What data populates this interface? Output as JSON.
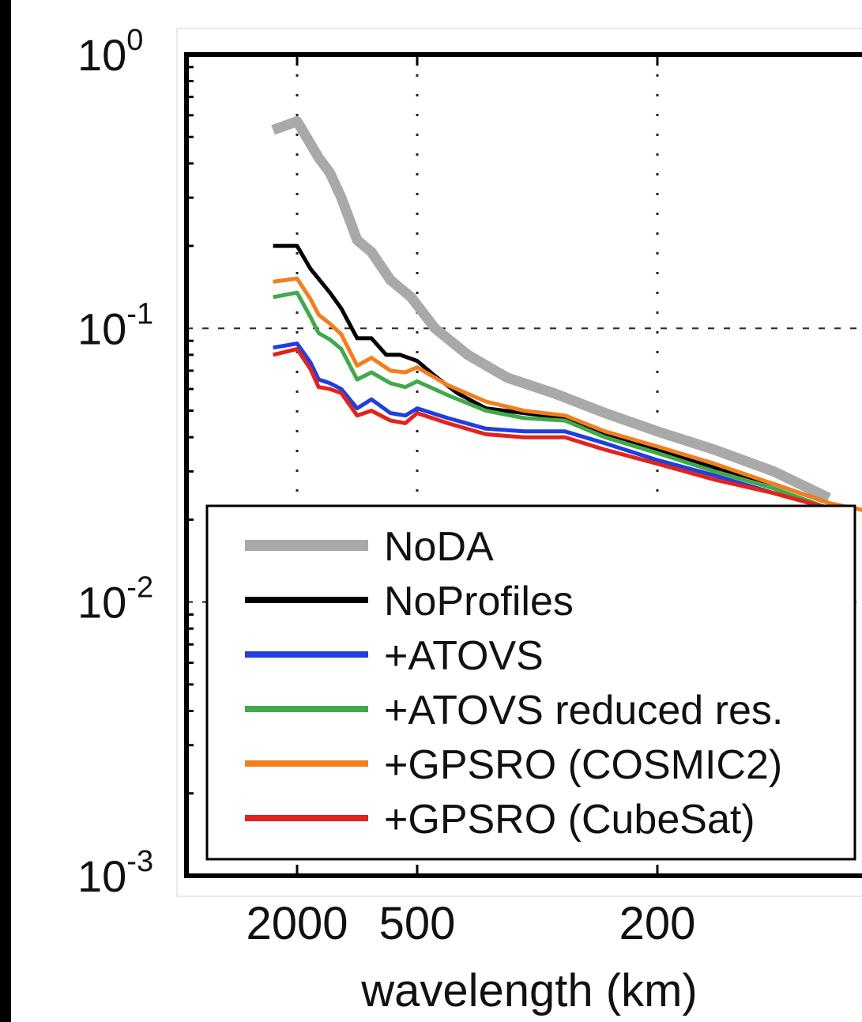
{
  "chart_data": {
    "type": "line",
    "title": "",
    "xlabel": "wavelength (km)",
    "ylabel": "",
    "x_scale": "reciprocal",
    "y_scale": "log",
    "xlim": [
      5000,
      70
    ],
    "ylim": [
      0.001,
      1
    ],
    "x_ticks": [
      {
        "value": 2000,
        "label": "2000"
      },
      {
        "value": 500,
        "label": "500"
      },
      {
        "value": 200,
        "label": "200"
      }
    ],
    "y_ticks": [
      {
        "value": 1,
        "base": "10",
        "exp": "0"
      },
      {
        "value": 0.1,
        "base": "10",
        "exp": "-1"
      },
      {
        "value": 0.01,
        "base": "10",
        "exp": "-2"
      },
      {
        "value": 0.001,
        "base": "10",
        "exp": "-3"
      }
    ],
    "grid": true,
    "legend_position": "bottom-left",
    "series": [
      {
        "name": "NoDA",
        "color": "#a9a9a9",
        "width": 13,
        "points": [
          [
            5000,
            0.53
          ],
          [
            2000,
            0.57
          ],
          [
            1300,
            0.42
          ],
          [
            1100,
            0.37
          ],
          [
            950,
            0.3
          ],
          [
            800,
            0.21
          ],
          [
            700,
            0.19
          ],
          [
            600,
            0.15
          ],
          [
            520,
            0.13
          ],
          [
            450,
            0.1
          ],
          [
            380,
            0.08
          ],
          [
            320,
            0.066
          ],
          [
            270,
            0.058
          ],
          [
            230,
            0.049
          ],
          [
            200,
            0.042
          ],
          [
            175,
            0.036
          ],
          [
            155,
            0.03
          ],
          [
            140,
            0.024
          ]
        ]
      },
      {
        "name": "NoProfiles",
        "color": "#000000",
        "width": 5,
        "points": [
          [
            5000,
            0.2
          ],
          [
            2000,
            0.2
          ],
          [
            1500,
            0.165
          ],
          [
            1100,
            0.135
          ],
          [
            950,
            0.118
          ],
          [
            800,
            0.092
          ],
          [
            700,
            0.092
          ],
          [
            620,
            0.08
          ],
          [
            560,
            0.08
          ],
          [
            500,
            0.076
          ],
          [
            450,
            0.067
          ],
          [
            400,
            0.058
          ],
          [
            350,
            0.051
          ],
          [
            300,
            0.049
          ],
          [
            260,
            0.047
          ],
          [
            230,
            0.041
          ],
          [
            200,
            0.036
          ],
          [
            175,
            0.031
          ],
          [
            155,
            0.027
          ],
          [
            140,
            0.023
          ]
        ]
      },
      {
        "name": "+ATOVS",
        "color": "#1f3fe0",
        "width": 5,
        "points": [
          [
            5000,
            0.085
          ],
          [
            2000,
            0.088
          ],
          [
            1500,
            0.075
          ],
          [
            1300,
            0.065
          ],
          [
            1100,
            0.063
          ],
          [
            950,
            0.06
          ],
          [
            800,
            0.051
          ],
          [
            700,
            0.055
          ],
          [
            600,
            0.049
          ],
          [
            540,
            0.048
          ],
          [
            500,
            0.051
          ],
          [
            420,
            0.047
          ],
          [
            350,
            0.043
          ],
          [
            300,
            0.042
          ],
          [
            260,
            0.042
          ],
          [
            230,
            0.038
          ],
          [
            200,
            0.033
          ],
          [
            175,
            0.029
          ],
          [
            155,
            0.025
          ],
          [
            140,
            0.022
          ]
        ]
      },
      {
        "name": "+ATOVS reduced res.",
        "color": "#41a94a",
        "width": 5,
        "points": [
          [
            5000,
            0.13
          ],
          [
            2000,
            0.135
          ],
          [
            1500,
            0.11
          ],
          [
            1300,
            0.096
          ],
          [
            1100,
            0.091
          ],
          [
            950,
            0.084
          ],
          [
            800,
            0.065
          ],
          [
            700,
            0.069
          ],
          [
            600,
            0.063
          ],
          [
            540,
            0.061
          ],
          [
            500,
            0.064
          ],
          [
            420,
            0.057
          ],
          [
            350,
            0.05
          ],
          [
            300,
            0.047
          ],
          [
            260,
            0.046
          ],
          [
            230,
            0.04
          ],
          [
            200,
            0.035
          ],
          [
            175,
            0.03
          ],
          [
            155,
            0.026
          ],
          [
            140,
            0.022
          ]
        ]
      },
      {
        "name": "+GPSRO (COSMIC2)",
        "color": "#f37e1d",
        "width": 5,
        "points": [
          [
            5000,
            0.148
          ],
          [
            2000,
            0.152
          ],
          [
            1500,
            0.128
          ],
          [
            1300,
            0.112
          ],
          [
            1100,
            0.104
          ],
          [
            950,
            0.095
          ],
          [
            800,
            0.073
          ],
          [
            700,
            0.078
          ],
          [
            600,
            0.07
          ],
          [
            540,
            0.069
          ],
          [
            500,
            0.072
          ],
          [
            420,
            0.062
          ],
          [
            350,
            0.054
          ],
          [
            300,
            0.05
          ],
          [
            260,
            0.048
          ],
          [
            230,
            0.042
          ],
          [
            200,
            0.037
          ],
          [
            175,
            0.032
          ],
          [
            155,
            0.027
          ],
          [
            140,
            0.023
          ],
          [
            70,
            0.0085
          ]
        ]
      },
      {
        "name": "+GPSRO (CubeSat)",
        "color": "#e3231b",
        "width": 5,
        "points": [
          [
            5000,
            0.08
          ],
          [
            2000,
            0.084
          ],
          [
            1500,
            0.071
          ],
          [
            1300,
            0.061
          ],
          [
            1100,
            0.06
          ],
          [
            950,
            0.058
          ],
          [
            800,
            0.048
          ],
          [
            700,
            0.05
          ],
          [
            600,
            0.046
          ],
          [
            540,
            0.045
          ],
          [
            500,
            0.049
          ],
          [
            420,
            0.045
          ],
          [
            350,
            0.041
          ],
          [
            300,
            0.04
          ],
          [
            260,
            0.04
          ],
          [
            230,
            0.036
          ],
          [
            200,
            0.032
          ],
          [
            175,
            0.028
          ],
          [
            155,
            0.025
          ],
          [
            140,
            0.022
          ]
        ]
      }
    ]
  }
}
